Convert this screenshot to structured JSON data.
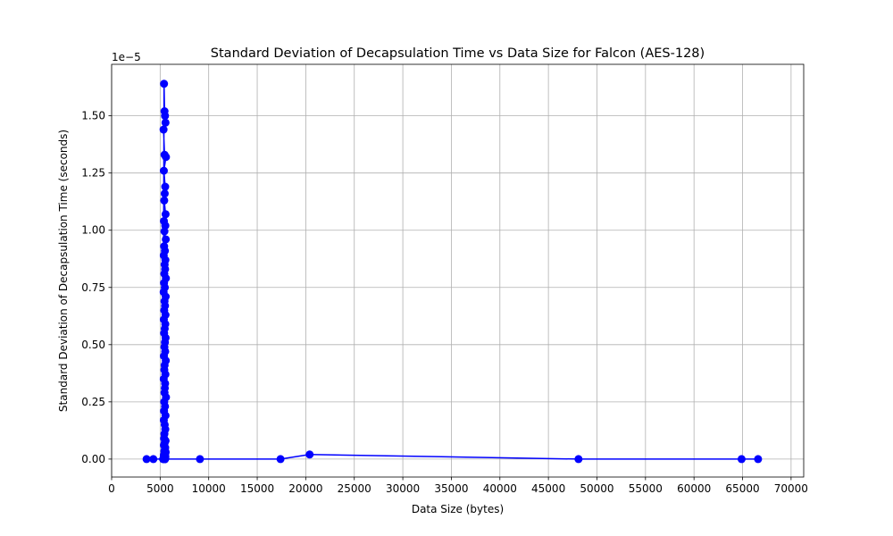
{
  "chart_data": {
    "type": "line",
    "title": "Standard Deviation of Decapsulation Time vs Data Size for Falcon (AES-128)",
    "xlabel": "Data Size (bytes)",
    "ylabel": "Standard Deviation of Decapsulation Time (seconds)",
    "offset_text": "1e−5",
    "xlim": [
      0,
      71300
    ],
    "ylim": [
      -7.85e-07,
      1.725e-05
    ],
    "x_ticks": [
      0,
      5000,
      10000,
      15000,
      20000,
      25000,
      30000,
      35000,
      40000,
      45000,
      50000,
      55000,
      60000,
      65000,
      70000
    ],
    "x_tick_labels": [
      "0",
      "5000",
      "10000",
      "15000",
      "20000",
      "25000",
      "30000",
      "35000",
      "40000",
      "45000",
      "50000",
      "55000",
      "60000",
      "65000",
      "70000"
    ],
    "y_ticks": [
      0,
      2.5e-06,
      5e-06,
      7.5e-06,
      1e-05,
      1.25e-05,
      1.5e-05
    ],
    "y_tick_labels": [
      "0.00",
      "0.25",
      "0.50",
      "0.75",
      "1.00",
      "1.25",
      "1.50"
    ],
    "grid": true,
    "legend": "none",
    "color": "#0000ff",
    "marker": "circle",
    "series": [
      {
        "x": [
          3600,
          4300,
          5300,
          5400,
          5450,
          5500,
          5550,
          5350,
          5450,
          5600,
          5380,
          5520,
          5470,
          5420,
          5560,
          5390,
          5530,
          5440,
          5580,
          5410,
          5490,
          5370,
          5540,
          5460,
          5510,
          5430,
          5590,
          5400,
          5480,
          5360,
          5570,
          5450,
          5500,
          5420,
          5550,
          5380,
          5530,
          5470,
          5410,
          5560,
          5490,
          5440,
          5520,
          5390,
          5580,
          5460,
          5430,
          5540,
          5370,
          5510,
          5480,
          5450,
          5600,
          5420,
          5500,
          5400,
          5550,
          5380,
          5470,
          5530,
          5440,
          5410,
          5560,
          5460,
          5390,
          5520,
          5490,
          5430,
          5570,
          5450,
          5400,
          5510,
          5380,
          5480,
          5540,
          5420,
          5460,
          5500,
          5440,
          5530,
          5410,
          5470,
          5390,
          5450,
          5500,
          5420,
          5480,
          5400,
          5460,
          5440,
          5500,
          5420,
          5480,
          5450,
          9100,
          17400,
          20400,
          48100,
          64900,
          66600
        ],
        "y": [
          0,
          0,
          0,
          1.64e-05,
          1.52e-05,
          1.5e-05,
          1.47e-05,
          1.44e-05,
          1.33e-05,
          1.32e-05,
          1.26e-05,
          1.19e-05,
          1.16e-05,
          1.13e-05,
          1.07e-05,
          1.04e-05,
          1.02e-05,
          9.95e-06,
          9.6e-06,
          9.3e-06,
          9.1e-06,
          8.9e-06,
          8.7e-06,
          8.5e-06,
          8.3e-06,
          8.1e-06,
          7.9e-06,
          7.7e-06,
          7.5e-06,
          7.3e-06,
          7.1e-06,
          6.9e-06,
          6.7e-06,
          6.5e-06,
          6.3e-06,
          6.1e-06,
          5.9e-06,
          5.7e-06,
          5.5e-06,
          5.3e-06,
          5.1e-06,
          4.9e-06,
          4.7e-06,
          4.5e-06,
          4.3e-06,
          4.1e-06,
          3.9e-06,
          3.7e-06,
          3.5e-06,
          3.3e-06,
          3.1e-06,
          2.9e-06,
          2.7e-06,
          2.5e-06,
          2.3e-06,
          2.1e-06,
          1.9e-06,
          1.7e-06,
          1.5e-06,
          1.3e-06,
          1.1e-06,
          9e-07,
          8e-07,
          7e-07,
          6e-07,
          5e-07,
          4e-07,
          3.5e-07,
          3e-07,
          2.5e-07,
          2e-07,
          1.8e-07,
          1.5e-07,
          1.2e-07,
          1e-07,
          8e-08,
          6e-08,
          5e-08,
          4e-08,
          3e-08,
          2e-08,
          1e-08,
          0,
          0,
          0,
          0,
          0,
          0,
          0,
          0,
          0,
          0,
          0,
          0,
          0,
          0,
          2e-07,
          0,
          0,
          0
        ]
      }
    ]
  }
}
